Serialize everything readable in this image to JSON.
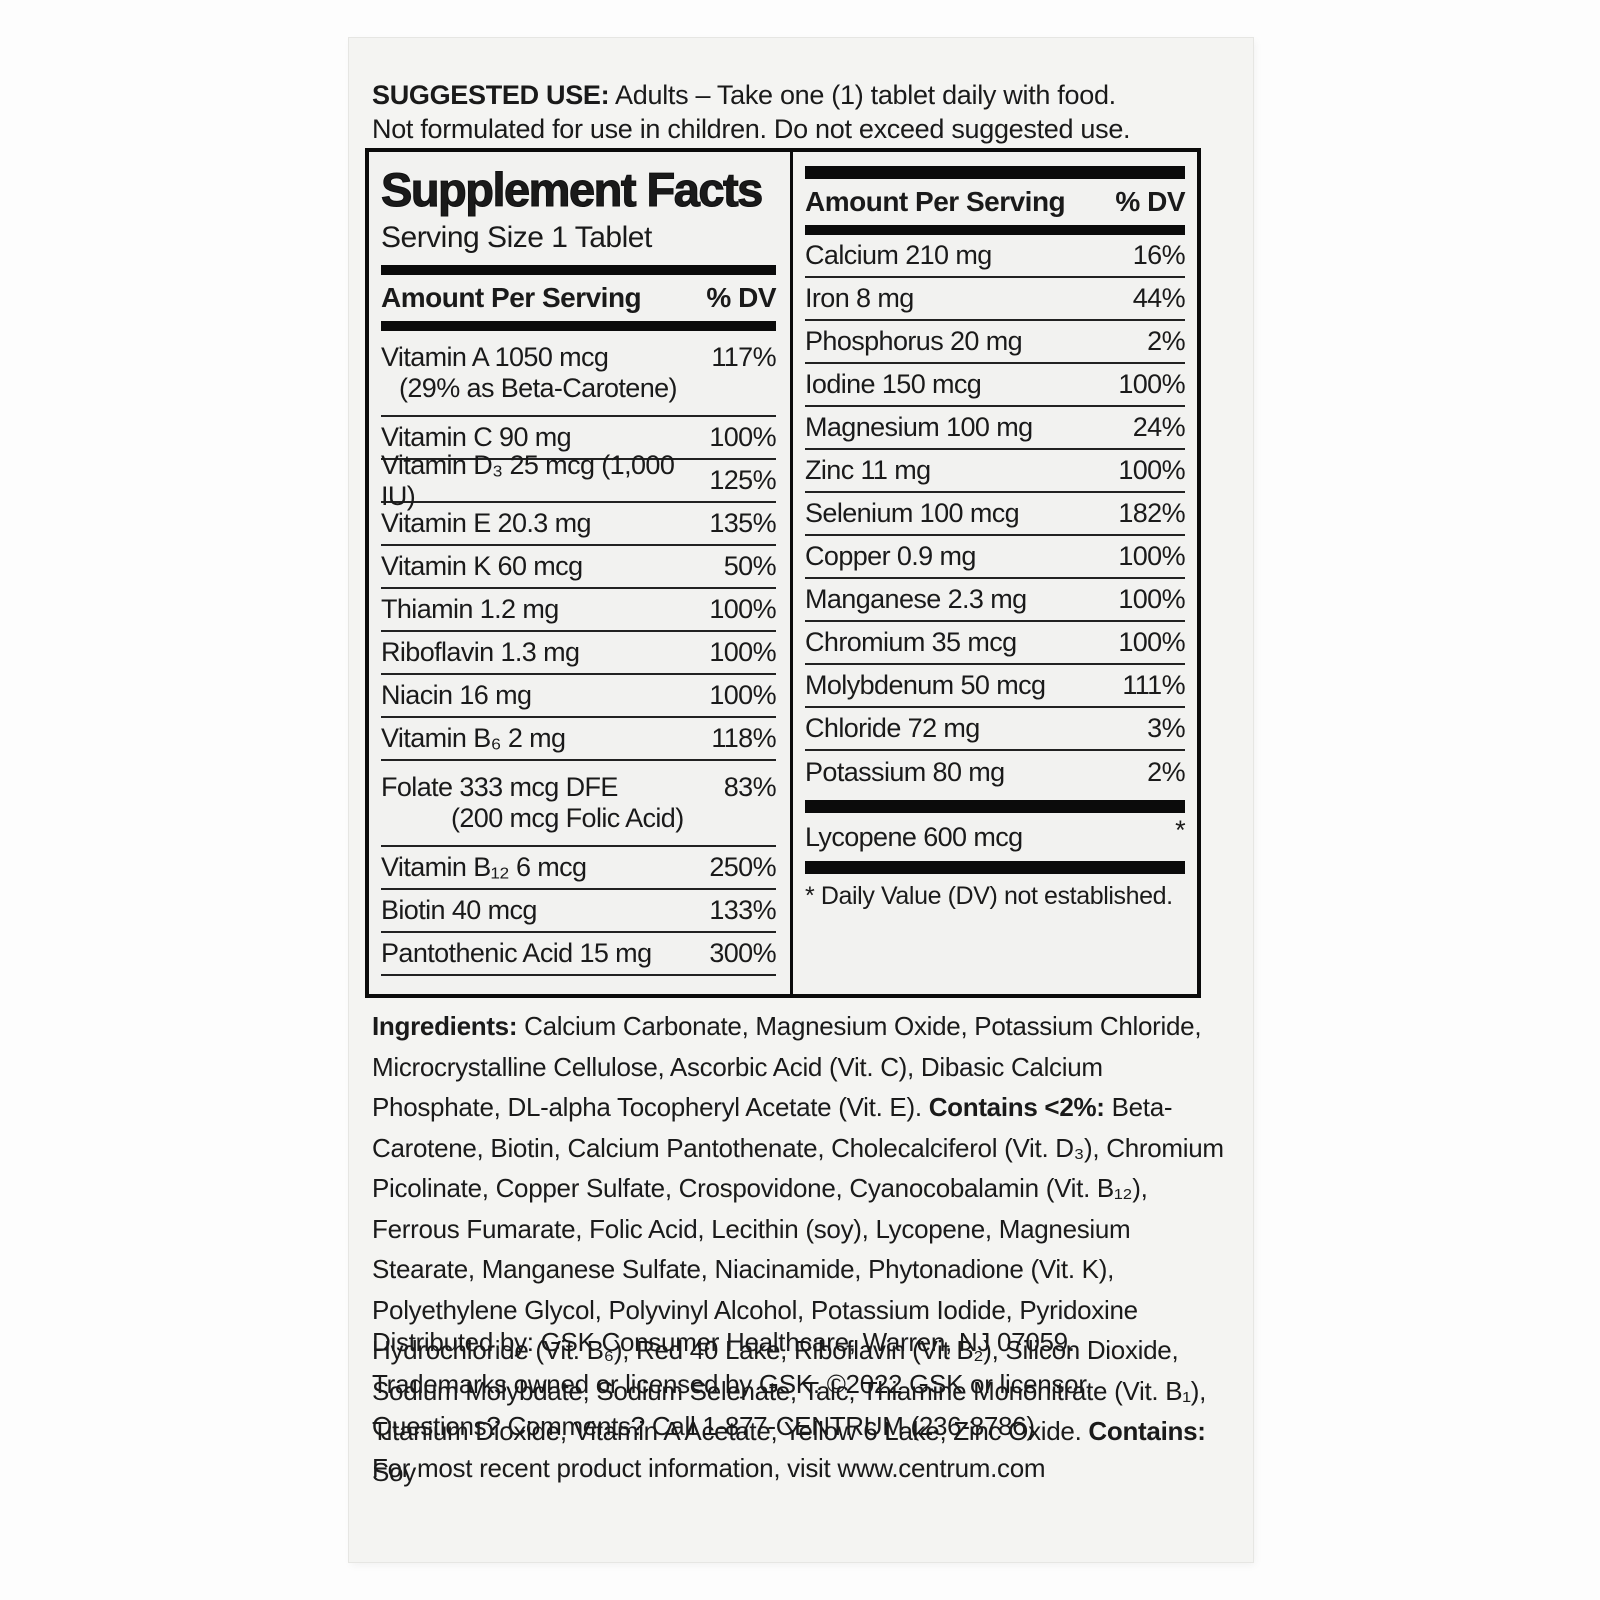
{
  "colors": {
    "page_bg": "#fdfdfd",
    "card_bg": "#f4f4f2",
    "text": "#1a1a1a",
    "rule": "#0b0b0b"
  },
  "suggested_use": {
    "label": "SUGGESTED USE:",
    "line1_rest": " Adults – Take one (1) tablet daily with food.",
    "line2": "Not formulated for use in children. Do not exceed suggested use."
  },
  "facts": {
    "title": "Supplement Facts",
    "serving_size": "Serving Size 1 Tablet",
    "amount_header": "Amount Per Serving",
    "dv_header": "% DV",
    "left_rows": [
      {
        "name": "Vitamin A 1050 mcg",
        "dv": "117%",
        "note": "(29% as Beta-Carotene)"
      },
      {
        "name": "Vitamin C 90 mg",
        "dv": "100%"
      },
      {
        "name": "Vitamin D₃ 25 mcg (1,000 IU)",
        "dv": "125%"
      },
      {
        "name": "Vitamin E 20.3 mg",
        "dv": "135%"
      },
      {
        "name": "Vitamin K 60 mcg",
        "dv": "50%"
      },
      {
        "name": "Thiamin 1.2 mg",
        "dv": "100%"
      },
      {
        "name": "Riboflavin 1.3 mg",
        "dv": "100%"
      },
      {
        "name": "Niacin 16 mg",
        "dv": "100%"
      },
      {
        "name": "Vitamin B₆ 2 mg",
        "dv": "118%"
      },
      {
        "name": "Folate 333 mcg DFE",
        "dv": "83%",
        "note": "(200 mcg Folic Acid)"
      },
      {
        "name": "Vitamin B₁₂ 6 mcg",
        "dv": "250%"
      },
      {
        "name": "Biotin 40 mcg",
        "dv": "133%"
      },
      {
        "name": "Pantothenic Acid 15 mg",
        "dv": "300%"
      }
    ],
    "right_rows": [
      {
        "name": "Calcium 210 mg",
        "dv": "16%"
      },
      {
        "name": "Iron 8 mg",
        "dv": "44%"
      },
      {
        "name": "Phosphorus 20 mg",
        "dv": "2%"
      },
      {
        "name": "Iodine 150 mcg",
        "dv": "100%"
      },
      {
        "name": "Magnesium 100 mg",
        "dv": "24%"
      },
      {
        "name": "Zinc 11 mg",
        "dv": "100%"
      },
      {
        "name": "Selenium 100 mcg",
        "dv": "182%"
      },
      {
        "name": "Copper 0.9 mg",
        "dv": "100%"
      },
      {
        "name": "Manganese 2.3 mg",
        "dv": "100%"
      },
      {
        "name": "Chromium 35 mcg",
        "dv": "100%"
      },
      {
        "name": "Molybdenum 50 mcg",
        "dv": "111%"
      },
      {
        "name": "Chloride 72 mg",
        "dv": "3%"
      },
      {
        "name": "Potassium 80 mg",
        "dv": "2%"
      }
    ],
    "lycopene": {
      "name": "Lycopene 600 mcg",
      "dv": "*"
    },
    "footnote": "* Daily Value (DV) not established."
  },
  "ingredients": {
    "label": "Ingredients:",
    "part1": " Calcium Carbonate, Magnesium Oxide, Potassium Chloride, Microcrystalline Cellulose, Ascorbic Acid (Vit. C), Dibasic Calcium Phosphate, DL-alpha Tocopheryl Acetate (Vit. E). ",
    "contains2_label": "Contains <2%:",
    "part2": " Beta- Carotene, Biotin, Calcium Pantothenate, Cholecalciferol (Vit. D₃), Chromium Picolinate, Copper Sulfate, Crospovidone, Cyanocobalamin (Vit. B₁₂), Ferrous Fumarate, Folic Acid, Lecithin (soy), Lycopene, Magnesium Stearate, Manganese Sulfate, Niacinamide, Phytonadione (Vit. K), Polyethylene Glycol, Polyvinyl Alcohol, Potassium Iodide, Pyridoxine Hydrochloride (Vit. B₆), Red 40 Lake, Riboflavin (Vit B₂), Silicon Dioxide, Sodium Molybdate, Sodium Selenate, Talc, Thiamine Mononitrate (Vit. B₁), Titanium Dioxide, Vitamin A Acetate, Yellow 6 Lake, Zinc Oxide. ",
    "contains_label": "Contains:",
    "part3": " Soy"
  },
  "footer": {
    "distributed": "Distributed by: GSK Consumer Healthcare, Warren, NJ 07059.",
    "trademarks": "Trademarks owned or licensed by GSK. ©2022 GSK or licensor.",
    "questions": "Questions? Comments? Call 1-877-CENTRUM (236-8786)",
    "product_info": "For most recent product information, visit www.centrum.com"
  }
}
